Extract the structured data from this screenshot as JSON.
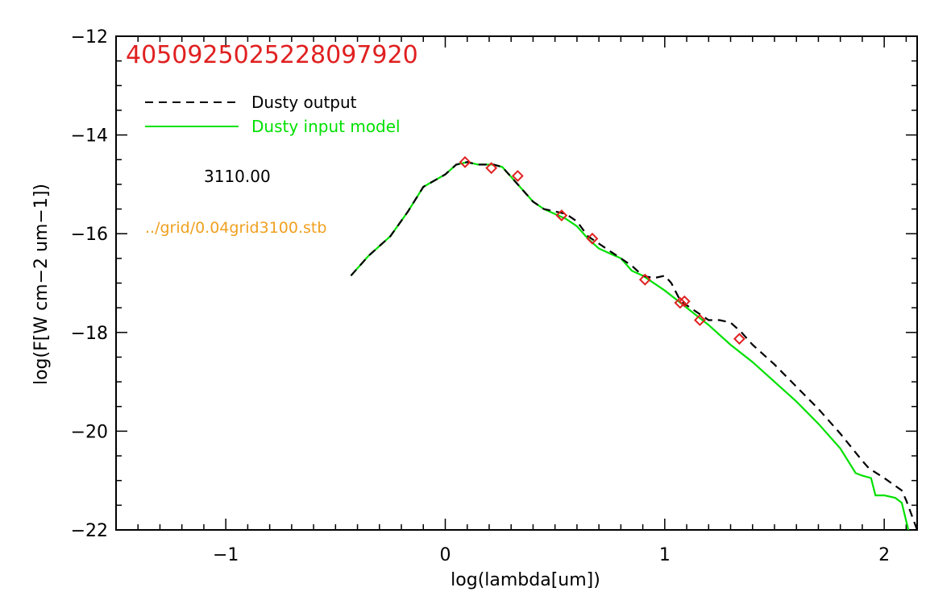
{
  "chart_data": {
    "type": "line",
    "title": "405092502522809792​0",
    "xlabel": "log(lambda[um])",
    "ylabel": "log(F[W cm−2 um−1])",
    "xlim": [
      -1.5,
      2.15
    ],
    "ylim": [
      -22,
      -12
    ],
    "x_major_ticks": [
      -1,
      0,
      1,
      2
    ],
    "x_tick_labels": [
      "−1",
      "0",
      "1",
      "2"
    ],
    "y_major_ticks": [
      -22,
      -20,
      -18,
      -16,
      -14,
      -12
    ],
    "y_tick_labels": [
      "−22",
      "−20",
      "−18",
      "−16",
      "−14",
      "−12"
    ],
    "grid": false,
    "legend": {
      "placement": "top-left",
      "entries": [
        {
          "label": "Dusty output",
          "color": "#000000",
          "style": "dashed"
        },
        {
          "label": "Dusty input model",
          "color": "#00e000",
          "style": "solid"
        }
      ]
    },
    "annotations": {
      "temperature": "3110.00",
      "grid_file": "../grid/0.04grid3100.stb"
    },
    "colors": {
      "title": "#e02020",
      "temperature": "#000000",
      "grid_file": "#f0a020",
      "diamond": "#e02020"
    },
    "series": [
      {
        "name": "Dusty output",
        "style": "dashed",
        "color": "#000000",
        "x": [
          -0.43,
          -0.35,
          -0.25,
          -0.17,
          -0.1,
          0.0,
          0.05,
          0.1,
          0.15,
          0.22,
          0.26,
          0.3,
          0.35,
          0.4,
          0.45,
          0.5,
          0.55,
          0.6,
          0.65,
          0.7,
          0.75,
          0.8,
          0.85,
          0.9,
          0.95,
          1.0,
          1.03,
          1.07,
          1.1,
          1.15,
          1.2,
          1.25,
          1.3,
          1.35,
          1.4,
          1.5,
          1.6,
          1.7,
          1.8,
          1.9,
          1.93,
          2.0,
          2.08,
          2.1,
          2.15
        ],
        "y": [
          -16.85,
          -16.45,
          -16.05,
          -15.55,
          -15.05,
          -14.8,
          -14.6,
          -14.55,
          -14.6,
          -14.6,
          -14.65,
          -14.85,
          -15.1,
          -15.35,
          -15.5,
          -15.55,
          -15.6,
          -15.75,
          -16.05,
          -16.2,
          -16.35,
          -16.5,
          -16.65,
          -16.85,
          -16.9,
          -16.85,
          -17.0,
          -17.35,
          -17.45,
          -17.6,
          -17.75,
          -17.75,
          -17.8,
          -18.0,
          -18.25,
          -18.65,
          -19.1,
          -19.55,
          -20.05,
          -20.6,
          -20.75,
          -20.95,
          -21.2,
          -21.4,
          -22.0
        ]
      },
      {
        "name": "Dusty input model",
        "style": "solid",
        "color": "#00e000",
        "x": [
          -0.43,
          -0.35,
          -0.25,
          -0.17,
          -0.1,
          0.0,
          0.05,
          0.1,
          0.15,
          0.22,
          0.26,
          0.3,
          0.35,
          0.4,
          0.45,
          0.5,
          0.55,
          0.6,
          0.65,
          0.7,
          0.75,
          0.8,
          0.85,
          0.9,
          1.0,
          1.1,
          1.2,
          1.3,
          1.4,
          1.5,
          1.6,
          1.7,
          1.8,
          1.87,
          1.9,
          1.94,
          1.96,
          2.0,
          2.05,
          2.08,
          2.11
        ],
        "y": [
          -16.85,
          -16.45,
          -16.05,
          -15.55,
          -15.05,
          -14.8,
          -14.6,
          -14.55,
          -14.6,
          -14.6,
          -14.65,
          -14.85,
          -15.1,
          -15.35,
          -15.5,
          -15.6,
          -15.7,
          -15.85,
          -16.1,
          -16.3,
          -16.4,
          -16.5,
          -16.75,
          -16.85,
          -17.15,
          -17.5,
          -17.85,
          -18.25,
          -18.6,
          -19.0,
          -19.4,
          -19.85,
          -20.35,
          -20.85,
          -20.9,
          -20.95,
          -21.3,
          -21.3,
          -21.35,
          -21.45,
          -22.0
        ]
      },
      {
        "name": "",
        "style": "diamond",
        "color": "#e02020",
        "x": [
          0.09,
          0.21,
          0.33,
          0.53,
          0.67,
          0.91,
          1.07,
          1.09,
          1.16,
          1.34
        ],
        "y": [
          -14.55,
          -14.67,
          -14.83,
          -15.63,
          -16.1,
          -16.93,
          -17.4,
          -17.37,
          -17.75,
          -18.13
        ]
      }
    ]
  }
}
